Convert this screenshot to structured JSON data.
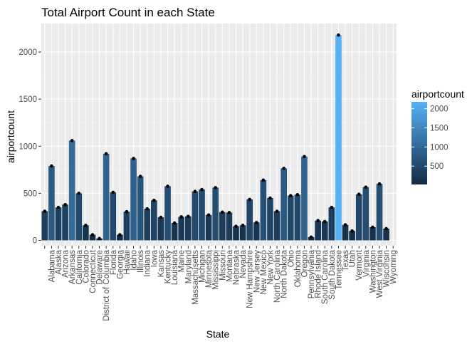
{
  "chart_data": {
    "type": "bar",
    "title": "Total Airport Count in each State",
    "xlabel": "State",
    "ylabel": "airportcount",
    "ylim": [
      0,
      2200
    ],
    "yticks": [
      0,
      500,
      1000,
      1500,
      2000
    ],
    "categories": [
      "",
      "Alabama",
      "Alaska",
      "Arizona",
      "Arkansas",
      "California",
      "Colorado",
      "Connecticut",
      "Delaware",
      "District of Columbia",
      "Florida",
      "Georgia",
      "Hawaii",
      "Idaho",
      "Illinois",
      "Indiana",
      "Iowa",
      "Kansas",
      "Kentucky",
      "Louisiana",
      "Maine",
      "Maryland",
      "Massachusetts",
      "Michigan",
      "Minnesota",
      "Mississippi",
      "Missouri",
      "Montana",
      "Nebraska",
      "Nevada",
      "New Hampshire",
      "New Jersey",
      "New Mexico",
      "New York",
      "North Carolina",
      "North Dakota",
      "Ohio",
      "Oklahoma",
      "Oregon",
      "Pennsylvania",
      "Rhode Island",
      "South Carolina",
      "South Dakota",
      "Tennessee",
      "Texas",
      "Utah",
      "Vermont",
      "Virginia",
      "Washington",
      "West Virginia",
      "Wisconsin",
      "Wyoming"
    ],
    "values": [
      310,
      790,
      350,
      380,
      1060,
      500,
      160,
      60,
      20,
      920,
      510,
      60,
      305,
      870,
      680,
      335,
      425,
      245,
      575,
      185,
      250,
      255,
      520,
      540,
      270,
      560,
      300,
      295,
      150,
      160,
      435,
      190,
      640,
      450,
      310,
      765,
      475,
      485,
      890,
      35,
      210,
      200,
      350,
      2180,
      165,
      100,
      490,
      565,
      140,
      600,
      125,
      0
    ],
    "fill_scale": {
      "low_color": "#132b43",
      "high_color": "#56b1f7",
      "min": 20,
      "max": 2180
    },
    "legend": {
      "title": "airportcount",
      "ticks": [
        500,
        1000,
        1500,
        2000
      ],
      "position": "right"
    },
    "points_marked": true,
    "grid": true
  }
}
